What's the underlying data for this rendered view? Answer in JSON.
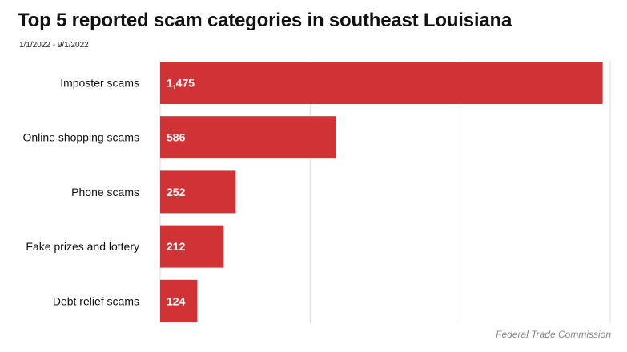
{
  "chart_data": {
    "type": "bar",
    "orientation": "horizontal",
    "title": "Top 5 reported scam categories in southeast Louisiana",
    "subtitle": "1/1/2022 - 9/1/2022",
    "categories": [
      "Imposter scams",
      "Online shopping scams",
      "Phone scams",
      "Fake prizes and lottery",
      "Debt relief scams"
    ],
    "values": [
      1475,
      586,
      252,
      212,
      124
    ],
    "value_labels": [
      "1,475",
      "586",
      "252",
      "212",
      "124"
    ],
    "xlim": [
      0,
      1500
    ],
    "grid": "vertical",
    "bar_color": "#d13236",
    "source": "Federal Trade Commission"
  }
}
